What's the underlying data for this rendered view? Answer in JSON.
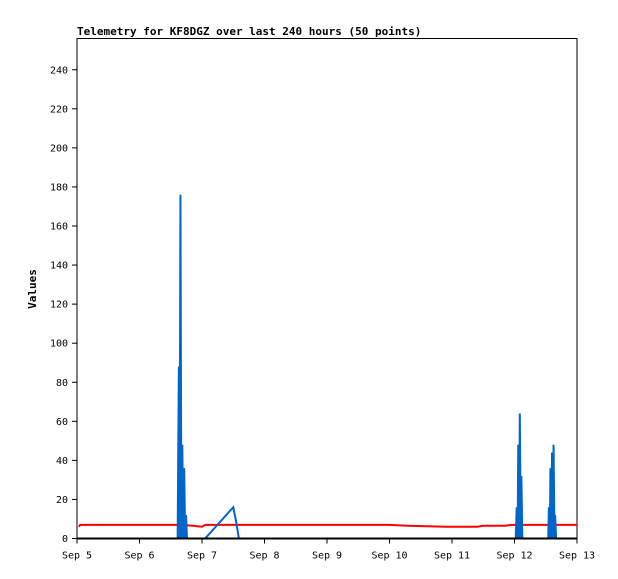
{
  "chart_data": {
    "type": "line",
    "title": "Telemetry for KF8DGZ over last 240 hours (50 points)",
    "xlabel": "",
    "ylabel": "Values",
    "x_ticks": [
      "Sep 5",
      "Sep 6",
      "Sep 7",
      "Sep 8",
      "Sep 9",
      "Sep 10",
      "Sep 11",
      "Sep 12",
      "Sep 13"
    ],
    "xlim": [
      0,
      8
    ],
    "y_ticks": [
      0,
      20,
      40,
      60,
      80,
      100,
      120,
      140,
      160,
      180,
      200,
      220,
      240
    ],
    "ylim": [
      0,
      256
    ],
    "grid": false,
    "legend": "none",
    "series": [
      {
        "color": "#ff0000",
        "points": [
          [
            0.03,
            6
          ],
          [
            0.05,
            7
          ],
          [
            1.0,
            7
          ],
          [
            1.4,
            7
          ],
          [
            1.7,
            7
          ],
          [
            1.85,
            6.5
          ],
          [
            2.0,
            6
          ],
          [
            2.05,
            7
          ],
          [
            3.0,
            7
          ],
          [
            4.0,
            7
          ],
          [
            5.0,
            7
          ],
          [
            5.3,
            6.5
          ],
          [
            5.9,
            6
          ],
          [
            6.4,
            6
          ],
          [
            6.5,
            6.5
          ],
          [
            6.85,
            6.5
          ],
          [
            6.95,
            7
          ],
          [
            7.5,
            7
          ],
          [
            8.0,
            7
          ]
        ]
      },
      {
        "color": "#0066cc",
        "points": [
          [
            1.61,
            0
          ],
          [
            1.63,
            88
          ],
          [
            1.64,
            0
          ],
          [
            1.655,
            176
          ],
          [
            1.67,
            0
          ],
          [
            1.685,
            48
          ],
          [
            1.7,
            0
          ],
          [
            1.715,
            36
          ],
          [
            1.73,
            0
          ],
          [
            1.745,
            12
          ],
          [
            1.76,
            0
          ],
          [
            2.05,
            0
          ],
          [
            2.5,
            16
          ],
          [
            2.55,
            8
          ],
          [
            2.59,
            0
          ],
          [
            7.02,
            0
          ],
          [
            7.035,
            16
          ],
          [
            7.05,
            0
          ],
          [
            7.06,
            48
          ],
          [
            7.075,
            0
          ],
          [
            7.085,
            64
          ],
          [
            7.1,
            0
          ],
          [
            7.11,
            32
          ],
          [
            7.125,
            0
          ],
          [
            7.54,
            0
          ],
          [
            7.55,
            16
          ],
          [
            7.565,
            0
          ],
          [
            7.575,
            36
          ],
          [
            7.59,
            0
          ],
          [
            7.6,
            44
          ],
          [
            7.615,
            0
          ],
          [
            7.625,
            48
          ],
          [
            7.64,
            0
          ],
          [
            7.65,
            12
          ],
          [
            7.665,
            0
          ]
        ]
      },
      {
        "color": "#000000",
        "points": [
          [
            0,
            0
          ],
          [
            8,
            0
          ]
        ]
      }
    ]
  }
}
